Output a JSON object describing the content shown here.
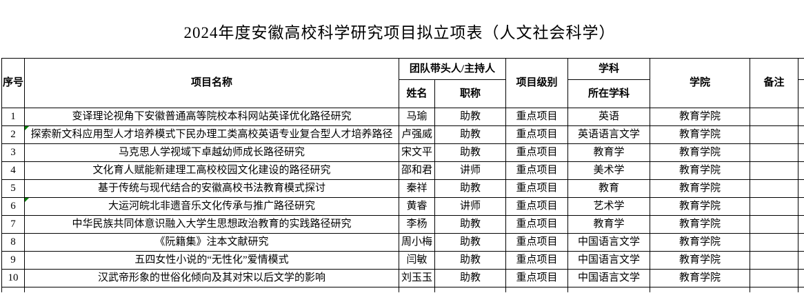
{
  "title": "2024年度安徽高校科学研究项目拟立项表（人文社会科学）",
  "colors": {
    "background": "#ffffff",
    "grid_border": "#000000",
    "text": "#000000",
    "error_flag_green": "#008000"
  },
  "table": {
    "headers": {
      "index": "序号",
      "project_name": "项目名称",
      "team_leader": "团队带头人/主持人",
      "leader_name": "姓名",
      "job_title": "职称",
      "project_level": "项目级别",
      "discipline": "学科",
      "current_discipline": "所在学科",
      "college": "学院",
      "remarks": "备注"
    },
    "rows": [
      {
        "index": "1",
        "project": "变译理论视角下安徽普通高等院校本科网站英译优化路径研究",
        "name": "马瑜",
        "title": "助教",
        "level": "重点项目",
        "discipline": "英语",
        "college": "教育学院",
        "remark": "",
        "has_flag": false
      },
      {
        "index": "2",
        "project": "探索新文科应用型人才培养模式下民办理工类高校英语专业复合型人才培养路径",
        "name": "卢强威",
        "title": "助教",
        "level": "重点项目",
        "discipline": "英语语言文学",
        "college": "教育学院",
        "remark": "",
        "has_flag": true
      },
      {
        "index": "3",
        "project": "马克思人学视域下卓越幼师成长路径研究",
        "name": "宋文平",
        "title": "助教",
        "level": "重点项目",
        "discipline": "教育学",
        "college": "教育学院",
        "remark": "",
        "has_flag": false
      },
      {
        "index": "4",
        "project": "文化育人赋能新建理工高校校园文化建设的路径研究",
        "name": "邵和君",
        "title": "讲师",
        "level": "重点项目",
        "discipline": "美术学",
        "college": "教育学院",
        "remark": "",
        "has_flag": false
      },
      {
        "index": "5",
        "project": "基于传统与现代结合的安徽高校书法教育模式探讨",
        "name": "秦祥",
        "title": "助教",
        "level": "重点项目",
        "discipline": "教育",
        "college": "教育学院",
        "remark": "",
        "has_flag": false
      },
      {
        "index": "6",
        "project": "大运河皖北非遗音乐文化传承与推广路径研究",
        "name": "黄睿",
        "title": "讲师",
        "level": "重点项目",
        "discipline": "艺术学",
        "college": "教育学院",
        "remark": "",
        "has_flag": true
      },
      {
        "index": "7",
        "project": "中华民族共同体意识融入大学生思想政治教育的实践路径研究",
        "name": "李杨",
        "title": "助教",
        "level": "重点项目",
        "discipline": "教育学",
        "college": "教育学院",
        "remark": "",
        "has_flag": false
      },
      {
        "index": "8",
        "project": "《阮籍集》注本文献研究",
        "name": "周小梅",
        "title": "助教",
        "level": "重点项目",
        "discipline": "中国语言文学",
        "college": "教育学院",
        "remark": "",
        "has_flag": false
      },
      {
        "index": "9",
        "project": "五四女性小说的“无性化”爱情模式",
        "name": "闫敏",
        "title": "助教",
        "level": "重点项目",
        "discipline": "中国语言文学",
        "college": "教育学院",
        "remark": "",
        "has_flag": false
      },
      {
        "index": "10",
        "project": "汉武帝形象的世俗化倾向及其对宋以后文学的影响",
        "name": "刘玉玉",
        "title": "助教",
        "level": "重点项目",
        "discipline": "中国语言文学",
        "college": "教育学院",
        "remark": "",
        "has_flag": false
      }
    ]
  }
}
